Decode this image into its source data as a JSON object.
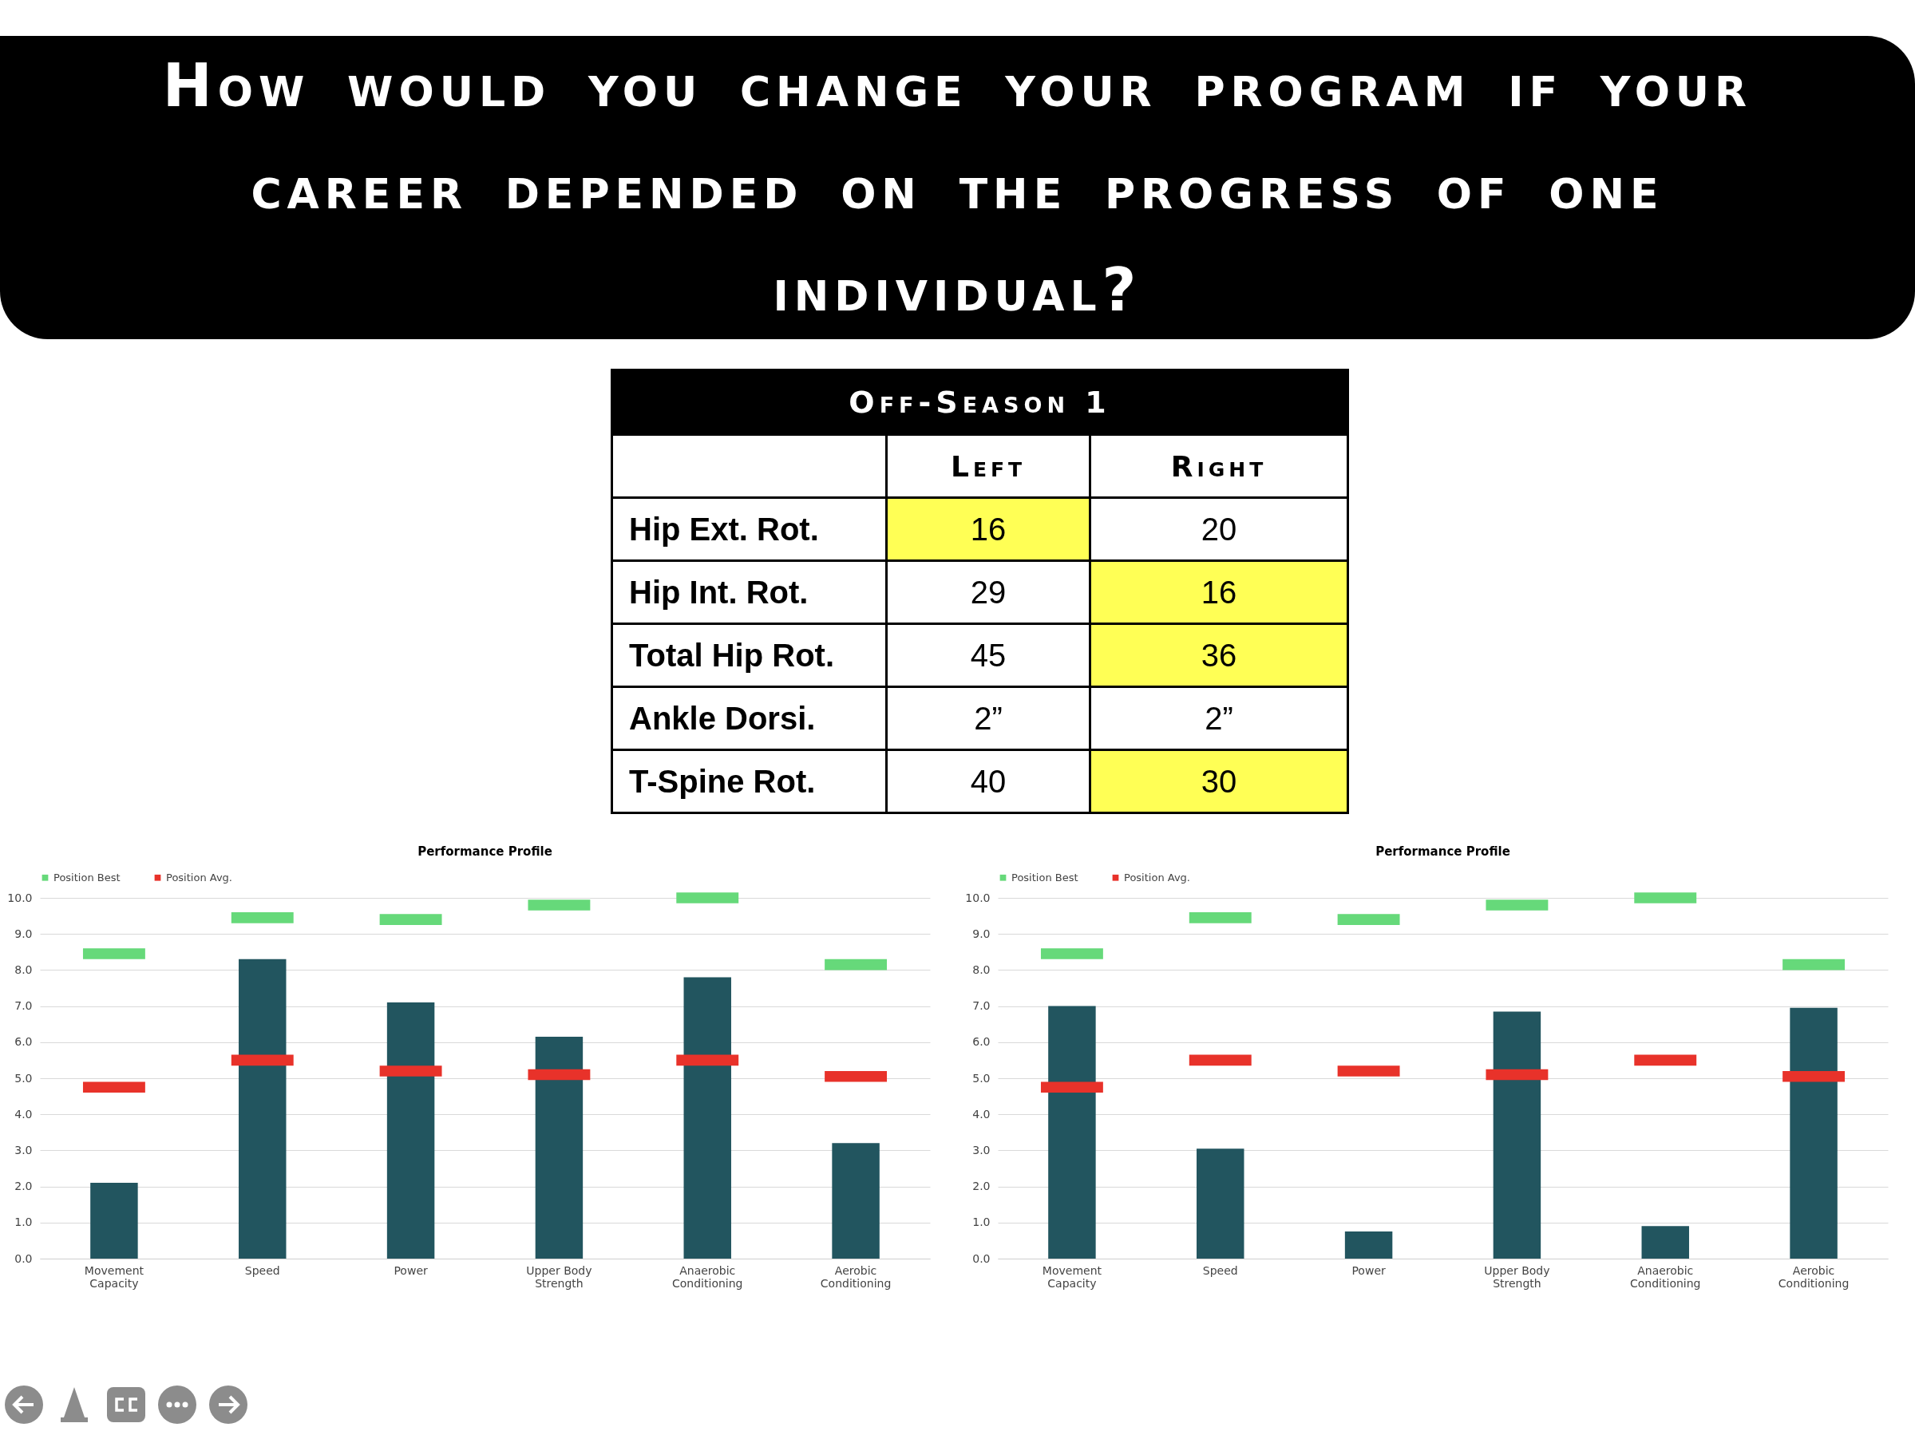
{
  "chart_data": [
    {
      "type": "other",
      "title": "How would you change your program if your career depended on the progress of one individual?",
      "subtitle": "Off-Season 1",
      "categories": [
        "Left",
        "Right"
      ],
      "y_categories": [
        "Hip Ext. Rot.",
        "Hip Int. Rot.",
        "Total Hip Rot.",
        "Ankle Dorsi.",
        "T-Spine Rot."
      ],
      "cell_labels": [
        [
          "16",
          "20"
        ],
        [
          "29",
          "16"
        ],
        [
          "45",
          "36"
        ],
        [
          "2”",
          "2”"
        ],
        [
          "40",
          "30"
        ]
      ],
      "colors": [
        "#ffff55",
        "#ffffff",
        "#ffffff",
        "#ffff55",
        "#ffffff",
        "#ffff55",
        "#ffffff",
        "#ffffff",
        "#ffffff",
        "#ffff55"
      ]
    },
    {
      "type": "bar",
      "title": "Performance Profile",
      "categories": [
        "Movement Capacity",
        "Speed",
        "Power",
        "Upper Body Strength",
        "Anaerobic Conditioning",
        "Aerobic Conditioning"
      ],
      "series": [
        {
          "color": "#22555f",
          "values": [
            2.1,
            8.3,
            7.1,
            6.15,
            7.8,
            3.2
          ]
        },
        {
          "name": "Position Best",
          "color": "#66d97a",
          "base": [
            8.3,
            9.3,
            9.25,
            9.65,
            9.85,
            8.0
          ],
          "values": [
            0.3,
            0.3,
            0.3,
            0.3,
            0.3,
            0.3
          ]
        },
        {
          "name": "Position Avg.",
          "color": "#e8322a",
          "base": [
            4.6,
            5.35,
            5.05,
            4.95,
            5.35,
            4.9
          ],
          "values": [
            0.3,
            0.3,
            0.3,
            0.3,
            0.3,
            0.3
          ]
        }
      ],
      "ylim": [
        0,
        10
      ],
      "yticks": [
        {
          "value": 0,
          "label": "0.0"
        },
        {
          "value": 1,
          "label": "1.0"
        },
        {
          "value": 2,
          "label": "2.0"
        },
        {
          "value": 3,
          "label": "3.0"
        },
        {
          "value": 4,
          "label": "4.0"
        },
        {
          "value": 5,
          "label": "5.0"
        },
        {
          "value": 6,
          "label": "6.0"
        },
        {
          "value": 7,
          "label": "7.0"
        },
        {
          "value": 8,
          "label": "8.0"
        },
        {
          "value": 9,
          "label": "9.0"
        },
        {
          "value": 10,
          "label": "10.0"
        }
      ],
      "grid": "y",
      "legend": "top"
    },
    {
      "type": "bar",
      "title": "Performance Profile",
      "categories": [
        "Movement Capacity",
        "Speed",
        "Power",
        "Upper Body Strength",
        "Anaerobic Conditioning",
        "Aerobic Conditioning"
      ],
      "series": [
        {
          "color": "#22555f",
          "values": [
            7.0,
            3.05,
            0.75,
            6.85,
            0.9,
            6.95
          ]
        },
        {
          "name": "Position Best",
          "color": "#66d97a",
          "base": [
            8.3,
            9.3,
            9.25,
            9.65,
            9.85,
            8.0
          ],
          "values": [
            0.3,
            0.3,
            0.3,
            0.3,
            0.3,
            0.3
          ]
        },
        {
          "name": "Position Avg.",
          "color": "#e8322a",
          "base": [
            4.6,
            5.35,
            5.05,
            4.95,
            5.35,
            4.9
          ],
          "values": [
            0.3,
            0.3,
            0.3,
            0.3,
            0.3,
            0.3
          ]
        }
      ],
      "ylim": [
        0,
        10
      ],
      "yticks": [
        {
          "value": 0,
          "label": "0.0"
        },
        {
          "value": 1,
          "label": "1.0"
        },
        {
          "value": 2,
          "label": "2.0"
        },
        {
          "value": 3,
          "label": "3.0"
        },
        {
          "value": 4,
          "label": "4.0"
        },
        {
          "value": 5,
          "label": "5.0"
        },
        {
          "value": 6,
          "label": "6.0"
        },
        {
          "value": 7,
          "label": "7.0"
        },
        {
          "value": 8,
          "label": "8.0"
        },
        {
          "value": 9,
          "label": "9.0"
        },
        {
          "value": 10,
          "label": "10.0"
        }
      ],
      "grid": "y",
      "legend": "top"
    }
  ]
}
